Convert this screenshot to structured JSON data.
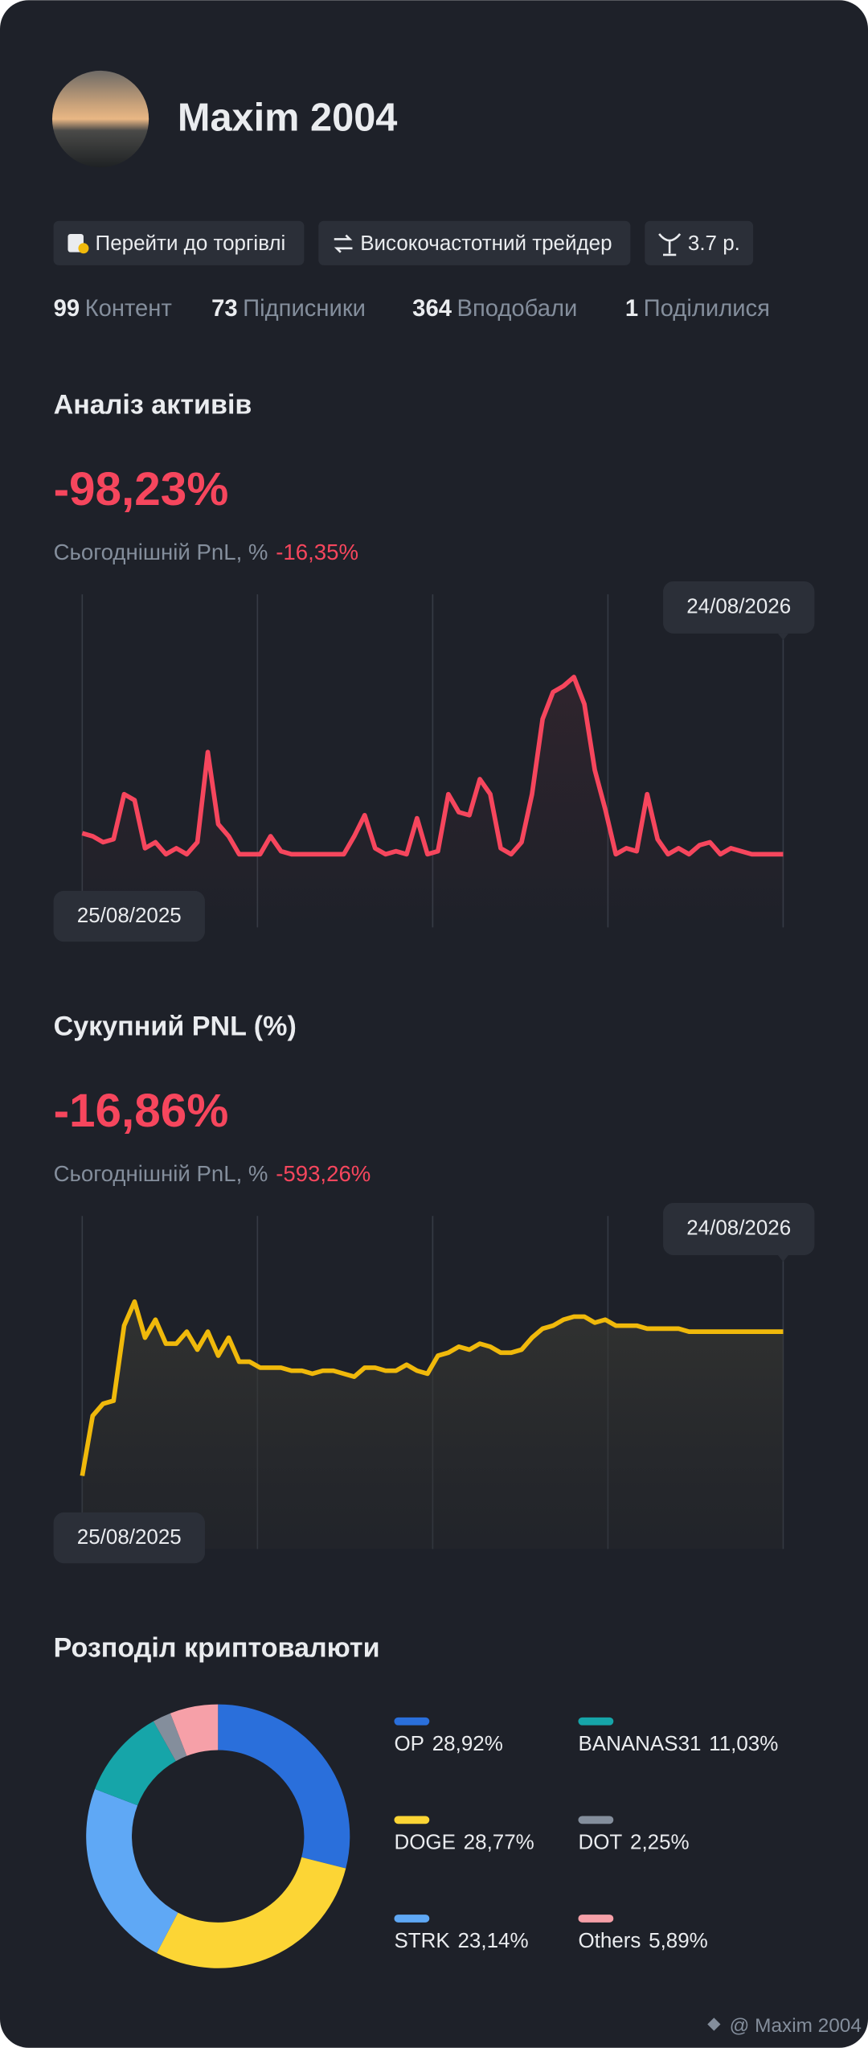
{
  "profile": {
    "name": "Maxim 2004",
    "tags": [
      "Перейти до торгівлі",
      "Високочастотний трейдер",
      "3.7 р."
    ],
    "stats": [
      {
        "value": 99,
        "label": "Контент"
      },
      {
        "value": 73,
        "label": "Підписники"
      },
      {
        "value": 364,
        "label": "Вподобали"
      },
      {
        "value": 1,
        "label": "Поділилися"
      }
    ]
  },
  "chart_data": [
    {
      "type": "line",
      "title": "Аналіз активів",
      "headline": "-98,23%",
      "subtitle": "Сьогоднішній PnL, %",
      "subtitle_value": "-16,35%",
      "color": "#f6465d",
      "ylim": [
        0,
        100
      ],
      "categories": [
        "25/08/2025",
        null,
        null,
        null,
        null,
        null,
        null,
        null,
        null,
        null,
        null,
        null,
        null,
        null,
        null,
        null,
        null,
        null,
        null,
        null,
        null,
        null,
        null,
        null,
        null,
        null,
        null,
        null,
        null,
        null,
        null,
        null,
        null,
        null,
        null,
        null,
        null,
        null,
        null,
        null,
        null,
        null,
        null,
        null,
        null,
        null,
        null,
        null,
        null,
        null,
        null,
        null,
        null,
        null,
        null,
        null,
        null,
        null,
        null,
        null,
        null,
        null,
        null,
        null,
        null,
        null,
        null,
        "24/08/2026"
      ],
      "values": [
        27,
        26,
        24,
        25,
        40,
        38,
        22,
        24,
        20,
        22,
        20,
        24,
        54,
        30,
        26,
        20,
        20,
        20,
        26,
        21,
        20,
        20,
        20,
        20,
        20,
        20,
        26,
        33,
        22,
        20,
        21,
        20,
        32,
        20,
        21,
        40,
        34,
        33,
        45,
        40,
        22,
        20,
        24,
        40,
        65,
        74,
        76,
        79,
        70,
        48,
        35,
        20,
        22,
        21,
        40,
        25,
        20,
        22,
        20,
        23,
        24,
        20,
        22,
        21,
        20,
        20,
        20,
        20
      ]
    },
    {
      "type": "line",
      "title": "Сукупний PNL (%)",
      "headline": "-16,86%",
      "subtitle": "Сьогоднішній PnL, %",
      "subtitle_value": "-593,26%",
      "color": "#f0b90b",
      "ylim": [
        0,
        100
      ],
      "categories": [
        "25/08/2025",
        null,
        null,
        null,
        null,
        null,
        null,
        null,
        null,
        null,
        null,
        null,
        null,
        null,
        null,
        null,
        null,
        null,
        null,
        null,
        null,
        null,
        null,
        null,
        null,
        null,
        null,
        null,
        null,
        null,
        null,
        null,
        null,
        null,
        null,
        null,
        null,
        null,
        null,
        null,
        null,
        null,
        null,
        null,
        null,
        null,
        null,
        null,
        null,
        null,
        null,
        null,
        null,
        null,
        null,
        null,
        null,
        null,
        null,
        null,
        null,
        null,
        null,
        null,
        null,
        null,
        null,
        "24/08/2026"
      ],
      "values": [
        20,
        40,
        44,
        45,
        70,
        78,
        66,
        72,
        64,
        64,
        68,
        62,
        68,
        60,
        66,
        58,
        58,
        56,
        56,
        56,
        55,
        55,
        54,
        55,
        55,
        54,
        53,
        56,
        56,
        55,
        55,
        57,
        55,
        54,
        60,
        61,
        63,
        62,
        64,
        63,
        61,
        61,
        62,
        66,
        69,
        70,
        72,
        73,
        73,
        71,
        72,
        70,
        70,
        70,
        69,
        69,
        69,
        69,
        68,
        68,
        68,
        68,
        68,
        68,
        68,
        68,
        68,
        68
      ]
    },
    {
      "type": "donut",
      "title": "Розподіл криптовалюти",
      "categories": [
        "OP",
        "DOGE",
        "STRK",
        "BANANAS31",
        "DOT",
        "Others"
      ],
      "values": [
        28.92,
        28.77,
        23.14,
        11.03,
        2.25,
        5.89
      ],
      "value_labels": [
        "28,92%",
        "28,77%",
        "23,14%",
        "11,03%",
        "2,25%",
        "5,89%"
      ],
      "colors": [
        "#2a6fdb",
        "#fcd535",
        "#5fa8f5",
        "#16a5a9",
        "#848e9c",
        "#f6a0a8"
      ]
    }
  ],
  "footer": "@ Maxim 2004"
}
